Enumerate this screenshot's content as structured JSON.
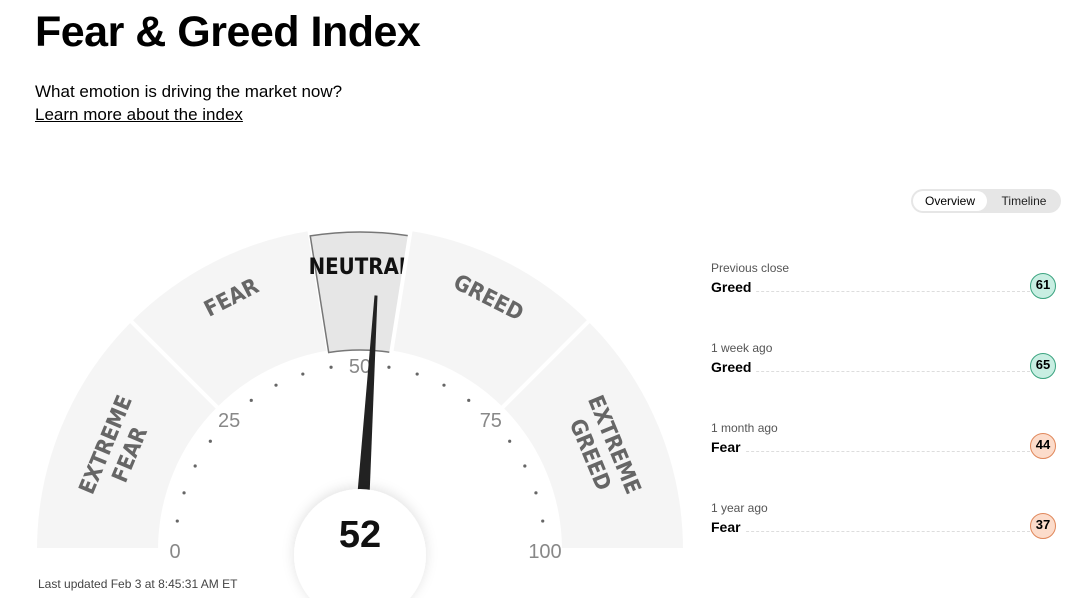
{
  "header": {
    "title": "Fear & Greed Index",
    "subtitle": "What emotion is driving the market now?",
    "learn_more": "Learn more about the index"
  },
  "toggle": {
    "options": [
      "Overview",
      "Timeline"
    ],
    "selected": "Overview"
  },
  "gauge": {
    "value": 52,
    "value_label": "52",
    "active_band": "NEUTRAL",
    "bands": [
      {
        "lines": [
          "EXTREME",
          "FEAR"
        ],
        "from": 0,
        "to": 25
      },
      {
        "lines": [
          "FEAR"
        ],
        "from": 25,
        "to": 45
      },
      {
        "lines": [
          "NEUTRAL"
        ],
        "from": 45,
        "to": 55
      },
      {
        "lines": [
          "GREED"
        ],
        "from": 55,
        "to": 75
      },
      {
        "lines": [
          "EXTREME",
          "GREED"
        ],
        "from": 75,
        "to": 100
      }
    ],
    "scale_labels": [
      "0",
      "25",
      "50",
      "75",
      "100"
    ]
  },
  "last_updated": "Last updated Feb 3 at 8:45:31 AM ET",
  "history": [
    {
      "label": "Previous close",
      "rating": "Greed",
      "value": "61",
      "type": "greed"
    },
    {
      "label": "1 week ago",
      "rating": "Greed",
      "value": "65",
      "type": "greed"
    },
    {
      "label": "1 month ago",
      "rating": "Fear",
      "value": "44",
      "type": "fear"
    },
    {
      "label": "1 year ago",
      "rating": "Fear",
      "value": "37",
      "type": "fear"
    }
  ],
  "colors": {
    "greed_fill": "#c8eee2",
    "greed_border": "#3aa37f",
    "fear_fill": "#fcdccb",
    "fear_border": "#e0875a",
    "band": "#f5f5f5",
    "active_band": "#e6e6e6"
  }
}
